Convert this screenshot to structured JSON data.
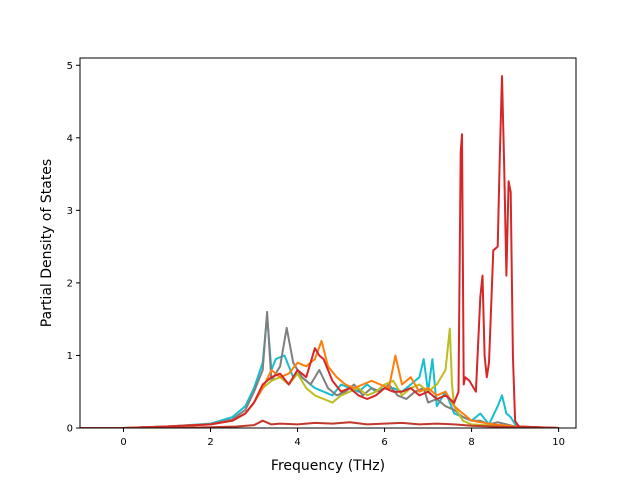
{
  "chart_data": {
    "type": "line",
    "title": "",
    "xlabel": "Frequency (THz)",
    "ylabel": "Partial Density of States",
    "xlim": [
      -1.0,
      10.4
    ],
    "ylim": [
      0,
      5.1
    ],
    "xticks": [
      0,
      2,
      4,
      6,
      8,
      10
    ],
    "yticks": [
      0,
      1,
      2,
      3,
      4,
      5
    ],
    "grid": false,
    "legend": "none",
    "series": [
      {
        "color": "#17becf",
        "x": [
          -1.0,
          0.0,
          1.0,
          2.0,
          2.5,
          2.8,
          3.0,
          3.2,
          3.3,
          3.4,
          3.5,
          3.7,
          3.9,
          4.0,
          4.2,
          4.4,
          4.6,
          4.8,
          5.0,
          5.2,
          5.4,
          5.6,
          5.8,
          6.0,
          6.2,
          6.4,
          6.6,
          6.8,
          6.9,
          7.0,
          7.1,
          7.2,
          7.4,
          7.6,
          7.8,
          8.0,
          8.2,
          8.4,
          8.6,
          8.7,
          8.8,
          8.9,
          9.0,
          9.1,
          10.0
        ],
        "values": [
          0,
          0,
          0.02,
          0.06,
          0.15,
          0.3,
          0.55,
          0.9,
          1.55,
          0.8,
          0.95,
          1.0,
          0.7,
          0.75,
          0.65,
          0.55,
          0.5,
          0.45,
          0.6,
          0.55,
          0.5,
          0.6,
          0.5,
          0.55,
          0.55,
          0.5,
          0.6,
          0.7,
          0.95,
          0.5,
          0.95,
          0.3,
          0.5,
          0.2,
          0.15,
          0.1,
          0.2,
          0.05,
          0.3,
          0.45,
          0.2,
          0.15,
          0.05,
          0,
          0
        ]
      },
      {
        "color": "#7f7f7f",
        "x": [
          -1.0,
          0.0,
          1.0,
          2.0,
          2.5,
          2.8,
          3.0,
          3.2,
          3.3,
          3.4,
          3.6,
          3.75,
          3.9,
          4.1,
          4.3,
          4.5,
          4.7,
          4.9,
          5.1,
          5.3,
          5.5,
          5.7,
          5.9,
          6.1,
          6.3,
          6.5,
          6.7,
          6.9,
          7.0,
          7.2,
          7.4,
          7.6,
          7.8,
          8.0,
          8.2,
          8.4,
          8.6,
          8.8,
          9.0,
          10.0
        ],
        "values": [
          0,
          0,
          0.02,
          0.05,
          0.12,
          0.25,
          0.5,
          0.8,
          1.6,
          0.65,
          0.85,
          1.38,
          0.9,
          0.7,
          0.6,
          0.8,
          0.55,
          0.45,
          0.5,
          0.6,
          0.45,
          0.55,
          0.5,
          0.6,
          0.45,
          0.4,
          0.5,
          0.55,
          0.35,
          0.4,
          0.3,
          0.25,
          0.15,
          0.1,
          0.1,
          0.05,
          0.08,
          0.05,
          0.02,
          0
        ]
      },
      {
        "color": "#bcbd22",
        "x": [
          -1.0,
          0.0,
          1.0,
          2.0,
          2.5,
          2.8,
          3.0,
          3.2,
          3.4,
          3.6,
          3.8,
          4.0,
          4.2,
          4.4,
          4.6,
          4.8,
          5.0,
          5.2,
          5.4,
          5.6,
          5.8,
          6.0,
          6.2,
          6.4,
          6.6,
          6.8,
          7.0,
          7.2,
          7.4,
          7.5,
          7.55,
          7.6,
          7.8,
          8.0,
          8.5,
          9.0,
          10.0
        ],
        "values": [
          0,
          0,
          0.02,
          0.05,
          0.1,
          0.2,
          0.35,
          0.55,
          0.65,
          0.7,
          0.6,
          0.75,
          0.55,
          0.45,
          0.4,
          0.35,
          0.45,
          0.5,
          0.55,
          0.45,
          0.5,
          0.6,
          0.65,
          0.45,
          0.55,
          0.6,
          0.5,
          0.6,
          0.8,
          1.37,
          0.6,
          0.3,
          0.1,
          0.05,
          0.03,
          0.01,
          0
        ]
      },
      {
        "color": "#ff7f0e",
        "x": [
          -1.0,
          0.0,
          1.0,
          2.0,
          2.5,
          2.8,
          3.0,
          3.2,
          3.4,
          3.6,
          3.8,
          4.0,
          4.2,
          4.4,
          4.55,
          4.7,
          4.9,
          5.1,
          5.3,
          5.5,
          5.7,
          5.9,
          6.1,
          6.25,
          6.4,
          6.6,
          6.8,
          7.0,
          7.2,
          7.4,
          7.6,
          7.8,
          8.0,
          8.5,
          9.0,
          10.0
        ],
        "values": [
          0,
          0,
          0.02,
          0.05,
          0.1,
          0.2,
          0.35,
          0.55,
          0.8,
          0.7,
          0.75,
          0.9,
          0.85,
          0.95,
          1.2,
          0.85,
          0.7,
          0.6,
          0.55,
          0.6,
          0.65,
          0.6,
          0.55,
          1.0,
          0.6,
          0.7,
          0.5,
          0.55,
          0.45,
          0.5,
          0.3,
          0.2,
          0.1,
          0.05,
          0.02,
          0
        ]
      },
      {
        "color": "#d62728",
        "x": [
          -1.0,
          0.0,
          1.0,
          2.0,
          2.5,
          2.8,
          3.0,
          3.2,
          3.4,
          3.6,
          3.8,
          4.0,
          4.2,
          4.4,
          4.5,
          4.6,
          4.8,
          5.0,
          5.2,
          5.4,
          5.6,
          5.8,
          6.0,
          6.2,
          6.4,
          6.6,
          6.8,
          7.0,
          7.2,
          7.4,
          7.6,
          7.7,
          7.75,
          7.78,
          7.82,
          7.85,
          7.95,
          8.1,
          8.2,
          8.25,
          8.3,
          8.35,
          8.4,
          8.5,
          8.6,
          8.65,
          8.7,
          8.75,
          8.8,
          8.85,
          8.9,
          8.95,
          9.0,
          9.05,
          9.1,
          10.0
        ],
        "values": [
          0,
          0,
          0.02,
          0.05,
          0.1,
          0.2,
          0.35,
          0.6,
          0.7,
          0.75,
          0.6,
          0.8,
          0.7,
          1.1,
          1.0,
          0.95,
          0.65,
          0.5,
          0.55,
          0.45,
          0.4,
          0.45,
          0.55,
          0.5,
          0.5,
          0.55,
          0.45,
          0.5,
          0.4,
          0.45,
          0.35,
          0.5,
          3.8,
          4.05,
          0.6,
          0.7,
          0.65,
          0.5,
          1.8,
          2.1,
          1.0,
          0.7,
          0.9,
          2.45,
          2.5,
          3.8,
          4.85,
          3.6,
          2.1,
          3.4,
          3.25,
          1.0,
          0.1,
          0.05,
          0.02,
          0
        ]
      },
      {
        "color": "#c0392b",
        "x": [
          -1.0,
          0.0,
          1.0,
          2.0,
          2.6,
          3.0,
          3.2,
          3.4,
          3.6,
          4.0,
          4.4,
          4.8,
          5.2,
          5.6,
          6.0,
          6.4,
          6.8,
          7.2,
          7.6,
          8.0,
          9.0,
          10.0
        ],
        "values": [
          0,
          0,
          0,
          0.01,
          0.02,
          0.04,
          0.1,
          0.05,
          0.06,
          0.05,
          0.07,
          0.06,
          0.08,
          0.05,
          0.06,
          0.07,
          0.05,
          0.06,
          0.05,
          0.03,
          0.01,
          0
        ]
      }
    ]
  }
}
